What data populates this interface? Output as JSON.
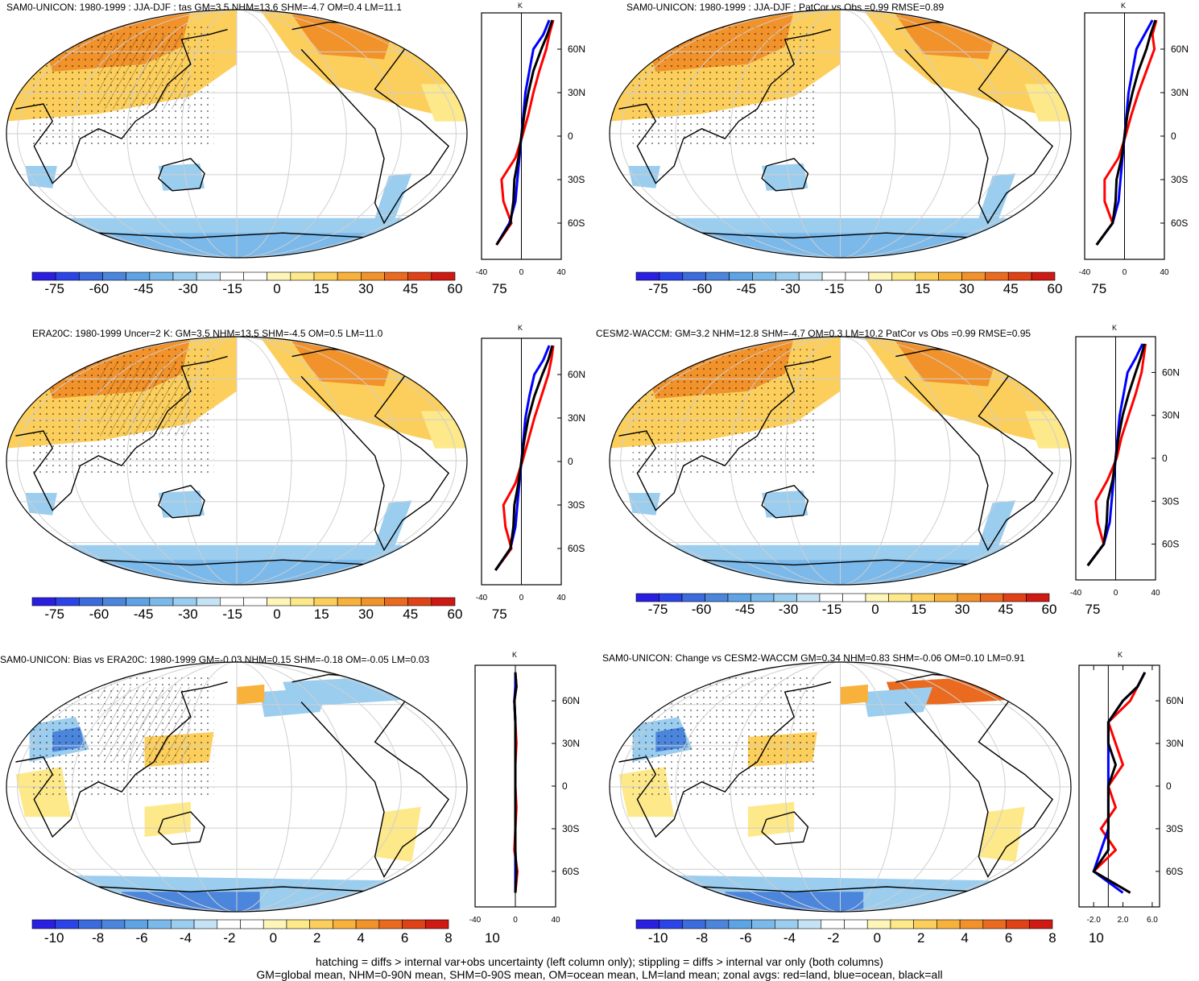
{
  "palette": {
    "cool": [
      "#2a1fe0",
      "#2b44e8",
      "#3b6bdc",
      "#4b86dc",
      "#5ea3e3",
      "#7bb9ea",
      "#9bcdef",
      "#c6e3f6"
    ],
    "white": "#ffffff",
    "warm": [
      "#fdf6b8",
      "#fde88a",
      "#fccf5d",
      "#f8b23b",
      "#f2922a",
      "#ea6a1f",
      "#e04218",
      "#cf1a14"
    ],
    "land_line": "#ff0000",
    "ocean_line": "#0000ff",
    "all_line": "#000000"
  },
  "panels": [
    {
      "title": "SAM0-UNICON: 1980-1999 : JJA-DJF : tas GM=3.5 NHM=13.6 SHM=-4.7 OM=0.4 LM=11.1",
      "colorbar_labels": [
        "-75",
        "-60",
        "-45",
        "-30",
        "-15",
        "0",
        "15",
        "30",
        "45",
        "60",
        "75"
      ],
      "profile_axis": {
        "units": "K",
        "ticks": [
          "-40",
          "0",
          "40"
        ],
        "lat_labels": [
          "60N",
          "30N",
          "0",
          "30S",
          "60S"
        ]
      }
    },
    {
      "title": "SAM0-UNICON: 1980-1999 : JJA-DJF : PatCor vs Obs =0.99 RMSE=0.89",
      "colorbar_labels": [
        "-75",
        "-60",
        "-45",
        "-30",
        "-15",
        "0",
        "15",
        "30",
        "45",
        "60",
        "75"
      ],
      "profile_axis": {
        "units": "K",
        "ticks": [
          "-40",
          "0",
          "40"
        ],
        "lat_labels": [
          "60N",
          "30N",
          "0",
          "30S",
          "60S"
        ]
      }
    },
    {
      "title": "ERA20C: 1980-1999 Uncer=2 K: GM=3.5 NHM=13.5 SHM=-4.5 OM=0.5 LM=11.0",
      "colorbar_labels": [
        "-75",
        "-60",
        "-45",
        "-30",
        "-15",
        "0",
        "15",
        "30",
        "45",
        "60",
        "75"
      ],
      "profile_axis": {
        "units": "K",
        "ticks": [
          "-40",
          "0",
          "40"
        ],
        "lat_labels": [
          "60N",
          "30N",
          "0",
          "30S",
          "60S"
        ]
      }
    },
    {
      "title": "CESM2-WACCM: GM=3.2 NHM=12.8 SHM=-4.7 OM=0.3 LM=10.2 PatCor vs Obs =0.99 RMSE=0.95",
      "colorbar_labels": [
        "-75",
        "-60",
        "-45",
        "-30",
        "-15",
        "0",
        "15",
        "30",
        "45",
        "60",
        "75"
      ],
      "profile_axis": {
        "units": "K",
        "ticks": [
          "-40",
          "0",
          "40"
        ],
        "lat_labels": [
          "60N",
          "30N",
          "0",
          "30S",
          "60S"
        ]
      }
    },
    {
      "title": "SAM0-UNICON: Bias vs ERA20C: 1980-1999 GM=-0.03 NHM=0.15 SHM=-0.18 OM=-0.05 LM=0.03",
      "colorbar_labels": [
        "-10",
        "-8",
        "-6",
        "-4",
        "-2",
        "0",
        "2",
        "4",
        "6",
        "8",
        "10"
      ],
      "profile_axis": {
        "units": "K",
        "ticks": [
          "-40",
          "0",
          "40"
        ],
        "lat_labels": [
          "60N",
          "30N",
          "0",
          "30S",
          "60S"
        ]
      }
    },
    {
      "title": "SAM0-UNICON: Change vs CESM2-WACCM GM=0.34 NHM=0.83 SHM=-0.06 OM=0.10 LM=0.91",
      "colorbar_labels": [
        "-10",
        "-8",
        "-6",
        "-4",
        "-2",
        "0",
        "2",
        "4",
        "6",
        "8",
        "10"
      ],
      "profile_axis": {
        "units": "K",
        "ticks": [
          "-2.0",
          "2.0",
          "6.0"
        ],
        "lat_labels": [
          "60N",
          "30N",
          "0",
          "30S",
          "60S"
        ]
      }
    }
  ],
  "chart_data": [
    {
      "type": "map",
      "panel": 1,
      "title": "SAM0-UNICON: 1980-1999 : JJA-DJF : tas",
      "values": {
        "GM": 3.5,
        "NHM": 13.6,
        "SHM": -4.7,
        "OM": 0.4,
        "LM": 11.1
      },
      "colorbar": [
        -75,
        -60,
        -45,
        -30,
        -15,
        0,
        15,
        30,
        45,
        60,
        75
      ],
      "zonal_profile": {
        "xlim": [
          -40,
          40
        ],
        "lat": [
          80,
          70,
          60,
          45,
          30,
          15,
          0,
          -15,
          -30,
          -45,
          -60,
          -75
        ],
        "land": [
          32,
          28,
          25,
          18,
          12,
          7,
          1,
          -6,
          -20,
          -18,
          -10,
          -25
        ],
        "ocean": [
          28,
          22,
          12,
          8,
          4,
          2,
          0,
          -2,
          -4,
          -6,
          -12,
          -25
        ],
        "all": [
          31,
          26,
          20,
          12,
          7,
          3,
          0,
          -3,
          -7,
          -8,
          -11,
          -25
        ]
      }
    },
    {
      "type": "map",
      "panel": 2,
      "title": "SAM0-UNICON: 1980-1999 : JJA-DJF : PatCor vs Obs",
      "values": {
        "PatCor": 0.99,
        "RMSE": 0.89
      },
      "colorbar": [
        -75,
        -60,
        -45,
        -30,
        -15,
        0,
        15,
        30,
        45,
        60,
        75
      ],
      "zonal_profile": {
        "xlim": [
          -40,
          40
        ],
        "lat": [
          80,
          70,
          60,
          45,
          30,
          15,
          0,
          -15,
          -30,
          -45,
          -60,
          -75
        ],
        "land": [
          32,
          28,
          30,
          22,
          14,
          7,
          1,
          -6,
          -20,
          -20,
          -12,
          -28
        ],
        "ocean": [
          28,
          20,
          12,
          8,
          4,
          2,
          0,
          -2,
          -4,
          -6,
          -12,
          -28
        ],
        "all": [
          31,
          26,
          22,
          14,
          8,
          3,
          0,
          -3,
          -8,
          -9,
          -12,
          -28
        ]
      }
    },
    {
      "type": "map",
      "panel": 3,
      "title": "ERA20C: 1980-1999 Uncer=2 K",
      "values": {
        "GM": 3.5,
        "NHM": 13.5,
        "SHM": -4.5,
        "OM": 0.5,
        "LM": 11.0
      },
      "colorbar": [
        -75,
        -60,
        -45,
        -30,
        -15,
        0,
        15,
        30,
        45,
        60,
        75
      ],
      "zonal_profile": {
        "xlim": [
          -40,
          40
        ],
        "lat": [
          80,
          70,
          60,
          45,
          30,
          15,
          0,
          -15,
          -30,
          -45,
          -60,
          -75
        ],
        "land": [
          32,
          30,
          27,
          20,
          13,
          7,
          1,
          -6,
          -18,
          -16,
          -10,
          -26
        ],
        "ocean": [
          28,
          22,
          13,
          8,
          4,
          2,
          0,
          -2,
          -4,
          -6,
          -11,
          -26
        ],
        "all": [
          31,
          27,
          21,
          13,
          7,
          3,
          0,
          -3,
          -7,
          -8,
          -11,
          -26
        ]
      }
    },
    {
      "type": "map",
      "panel": 4,
      "title": "CESM2-WACCM",
      "values": {
        "GM": 3.2,
        "NHM": 12.8,
        "SHM": -4.7,
        "OM": 0.3,
        "LM": 10.2,
        "PatCor": 0.99,
        "RMSE": 0.95
      },
      "colorbar": [
        -75,
        -60,
        -45,
        -30,
        -15,
        0,
        15,
        30,
        45,
        60,
        75
      ],
      "zonal_profile": {
        "xlim": [
          -40,
          40
        ],
        "lat": [
          80,
          70,
          60,
          45,
          30,
          15,
          0,
          -15,
          -30,
          -45,
          -60,
          -75
        ],
        "land": [
          30,
          28,
          26,
          20,
          13,
          6,
          1,
          -8,
          -20,
          -18,
          -12,
          -28
        ],
        "ocean": [
          27,
          20,
          12,
          8,
          4,
          2,
          0,
          -2,
          -4,
          -6,
          -12,
          -28
        ],
        "all": [
          29,
          25,
          20,
          13,
          7,
          3,
          0,
          -3,
          -8,
          -9,
          -12,
          -28
        ]
      }
    },
    {
      "type": "map",
      "panel": 5,
      "title": "SAM0-UNICON: Bias vs ERA20C: 1980-1999",
      "values": {
        "GM": -0.03,
        "NHM": 0.15,
        "SHM": -0.18,
        "OM": -0.05,
        "LM": 0.03
      },
      "colorbar": [
        -10,
        -8,
        -6,
        -4,
        -2,
        0,
        2,
        4,
        6,
        8,
        10
      ],
      "zonal_profile": {
        "xlim": [
          -40,
          40
        ],
        "lat": [
          80,
          70,
          60,
          45,
          30,
          15,
          0,
          -15,
          -30,
          -45,
          -60,
          -75
        ],
        "land": [
          0,
          1,
          -1,
          0,
          1,
          0,
          0,
          1,
          0,
          -1,
          2,
          0
        ],
        "ocean": [
          0,
          0,
          -1,
          0,
          0,
          0,
          0,
          0,
          0,
          0,
          0,
          0
        ],
        "all": [
          0,
          1,
          -1,
          0,
          0,
          0,
          0,
          0,
          0,
          0,
          1,
          0
        ]
      }
    },
    {
      "type": "map",
      "panel": 6,
      "title": "SAM0-UNICON: Change vs CESM2-WACCM",
      "values": {
        "GM": 0.34,
        "NHM": 0.83,
        "SHM": -0.06,
        "OM": 0.1,
        "LM": 0.91
      },
      "colorbar": [
        -10,
        -8,
        -6,
        -4,
        -2,
        0,
        2,
        4,
        6,
        8,
        10
      ],
      "zonal_profile": {
        "xlim": [
          -4,
          7
        ],
        "lat": [
          80,
          70,
          60,
          45,
          30,
          15,
          0,
          -15,
          -30,
          -45,
          -60,
          -75
        ],
        "land": [
          5,
          4,
          3,
          0,
          1,
          2,
          0,
          1,
          -1,
          1,
          -2,
          3
        ],
        "ocean": [
          5,
          4,
          2,
          0,
          0,
          0,
          0,
          0,
          0,
          -1,
          -2,
          2
        ],
        "all": [
          5,
          4,
          2,
          0,
          0,
          1,
          0,
          0,
          0,
          0,
          -2,
          3
        ]
      }
    }
  ],
  "footer": [
    "hatching = diffs > internal var+obs uncertainty (left column only); stippling = diffs > internal var only (both columns)",
    "GM=global mean, NHM=0-90N mean, SHM=0-90S mean, OM=ocean mean, LM=land mean; zonal avgs: red=land, blue=ocean, black=all"
  ]
}
